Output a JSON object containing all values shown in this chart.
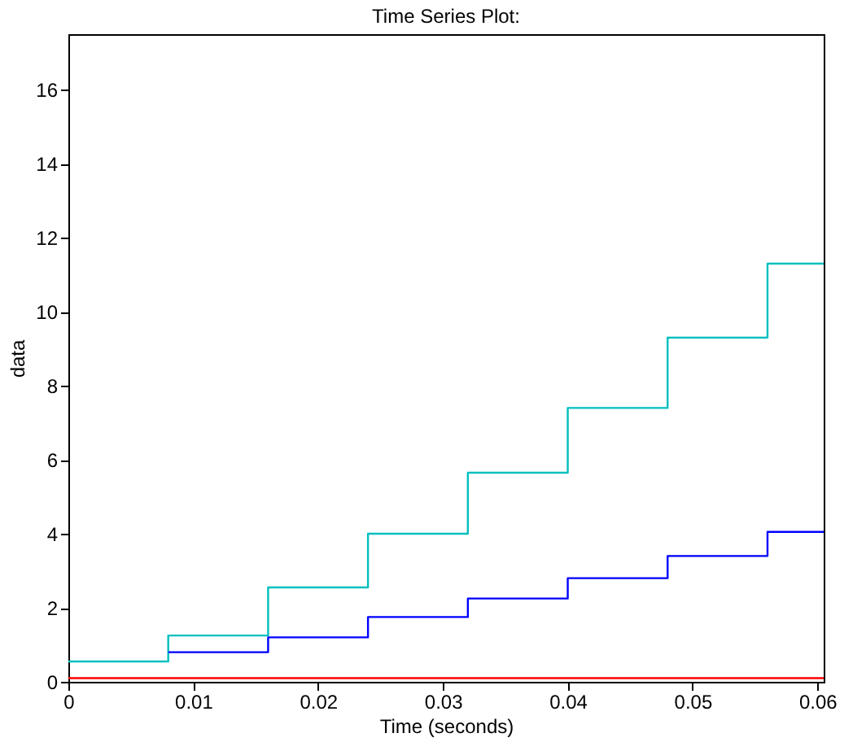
{
  "chart_data": {
    "type": "step",
    "title": "Time Series Plot:",
    "xlabel": "Time (seconds)",
    "ylabel": "data",
    "xlim": [
      0,
      0.0605
    ],
    "xticks": [
      0,
      0.01,
      0.02,
      0.03,
      0.04,
      0.05,
      0.06
    ],
    "ylim": [
      0,
      17.5
    ],
    "yticks": [
      0,
      2,
      4,
      6,
      8,
      10,
      12,
      14,
      16
    ],
    "grid": false,
    "series": [
      {
        "color": "#00bfbf",
        "x": [
          0,
          0.008,
          0.016,
          0.024,
          0.032,
          0.04,
          0.048,
          0.056,
          0.0605
        ],
        "values": [
          0.55,
          1.25,
          2.55,
          4.0,
          5.65,
          7.4,
          9.3,
          11.3,
          11.3
        ]
      },
      {
        "color": "#0000ff",
        "x": [
          0.008,
          0.016,
          0.024,
          0.032,
          0.04,
          0.048,
          0.056,
          0.0605
        ],
        "values": [
          0.8,
          1.2,
          1.75,
          2.25,
          2.8,
          3.4,
          4.05,
          4.05
        ]
      },
      {
        "color": "#ff0000",
        "x": [
          0,
          0.0605
        ],
        "values": [
          0.1,
          0.1
        ]
      }
    ]
  }
}
